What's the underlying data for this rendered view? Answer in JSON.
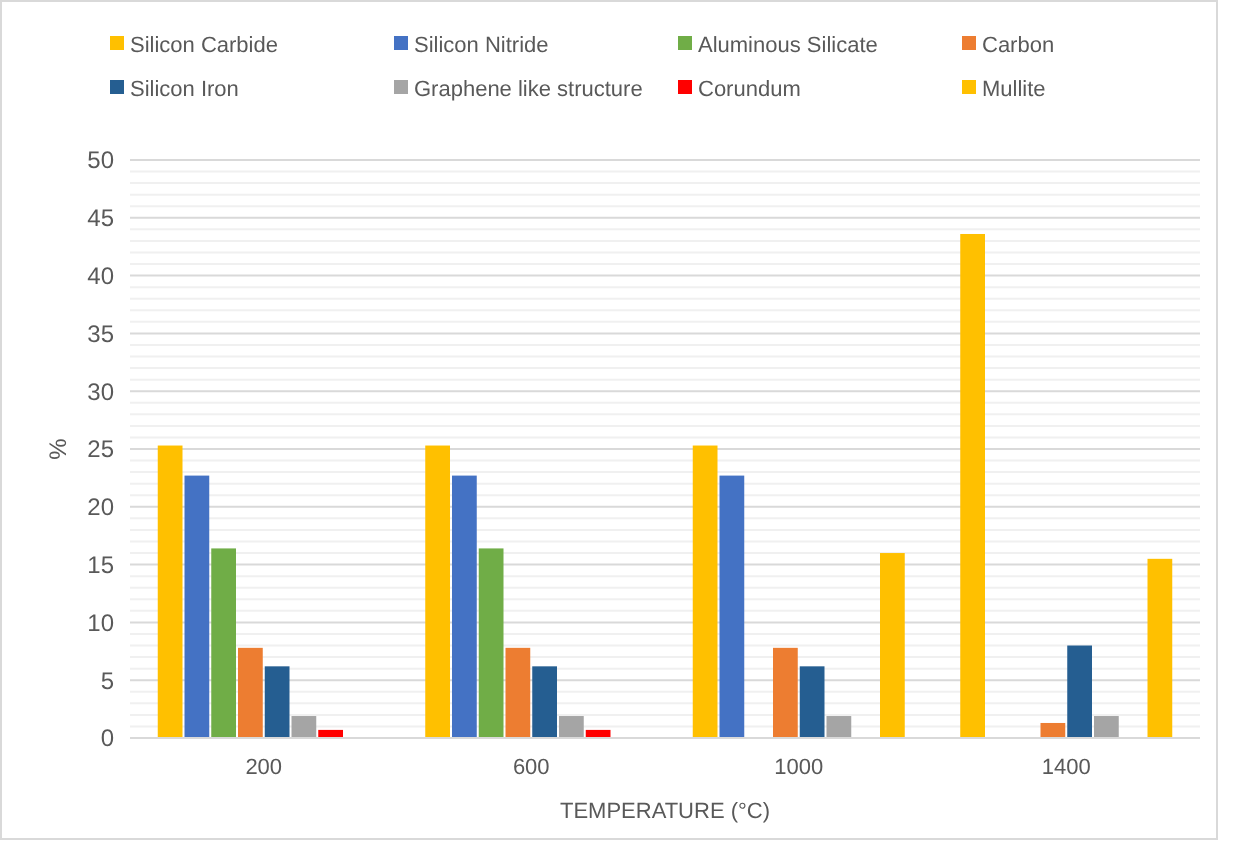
{
  "chart_data": {
    "type": "bar",
    "xlabel": "TEMPERATURE (°C)",
    "ylabel": "%",
    "categories": [
      "200",
      "600",
      "1000",
      "1400"
    ],
    "series": [
      {
        "name": "Silicon Carbide",
        "color": "#ffc000",
        "values": [
          25.3,
          25.3,
          25.3,
          43.6
        ]
      },
      {
        "name": "Silicon Nitride",
        "color": "#4472c4",
        "values": [
          22.7,
          22.7,
          22.7,
          null
        ]
      },
      {
        "name": "Aluminous Silicate",
        "color": "#70ad47",
        "values": [
          16.4,
          16.4,
          null,
          null
        ]
      },
      {
        "name": "Carbon",
        "color": "#ed7d31",
        "values": [
          7.8,
          7.8,
          7.8,
          1.3
        ]
      },
      {
        "name": "Silicon Iron",
        "color": "#255e91",
        "values": [
          6.2,
          6.2,
          6.2,
          8.0
        ]
      },
      {
        "name": "Graphene like structure",
        "color": "#a5a5a5",
        "values": [
          1.9,
          1.9,
          1.9,
          1.9
        ]
      },
      {
        "name": "Corundum",
        "color": "#ff0000",
        "values": [
          0.7,
          0.7,
          null,
          null
        ]
      },
      {
        "name": "Mullite",
        "color": "#ffc000",
        "values": [
          null,
          null,
          16.0,
          15.5
        ]
      }
    ],
    "ylim": [
      0,
      50
    ],
    "yticks": [
      0,
      {
        "value": 1,
        "label": null
      },
      {
        "value": 2,
        "label": null
      },
      {
        "value": 3,
        "label": null
      },
      {
        "value": 4,
        "label": null
      },
      5,
      {
        "value": 6,
        "label": null
      },
      {
        "value": 7,
        "label": null
      },
      {
        "value": 8,
        "label": null
      },
      {
        "value": 9,
        "label": null
      },
      10,
      {
        "value": 11,
        "label": null
      },
      {
        "value": 12,
        "label": null
      },
      {
        "value": 13,
        "label": null
      },
      {
        "value": 14,
        "label": null
      },
      15,
      {
        "value": 16,
        "label": null
      },
      {
        "value": 17,
        "label": null
      },
      {
        "value": 18,
        "label": null
      },
      {
        "value": 19,
        "label": null
      },
      20,
      {
        "value": 21,
        "label": null
      },
      {
        "value": 22,
        "label": null
      },
      {
        "value": 23,
        "label": null
      },
      {
        "value": 24,
        "label": null
      },
      25,
      {
        "value": 26,
        "label": null
      },
      {
        "value": 27,
        "label": null
      },
      {
        "value": 28,
        "label": null
      },
      {
        "value": 29,
        "label": null
      },
      30,
      {
        "value": 31,
        "label": null
      },
      {
        "value": 32,
        "label": null
      },
      {
        "value": 33,
        "label": null
      },
      {
        "value": 34,
        "label": null
      },
      35,
      {
        "value": 36,
        "label": null
      },
      {
        "value": 37,
        "label": null
      },
      {
        "value": 38,
        "label": null
      },
      {
        "value": 39,
        "label": null
      },
      40,
      {
        "value": 41,
        "label": null
      },
      {
        "value": 42,
        "label": null
      },
      {
        "value": 43,
        "label": null
      },
      {
        "value": 44,
        "label": null
      },
      45,
      {
        "value": 46,
        "label": null
      },
      {
        "value": 47,
        "label": null
      },
      {
        "value": 48,
        "label": null
      },
      {
        "value": 49,
        "label": null
      },
      50
    ],
    "grid": "y",
    "legend": "top"
  }
}
